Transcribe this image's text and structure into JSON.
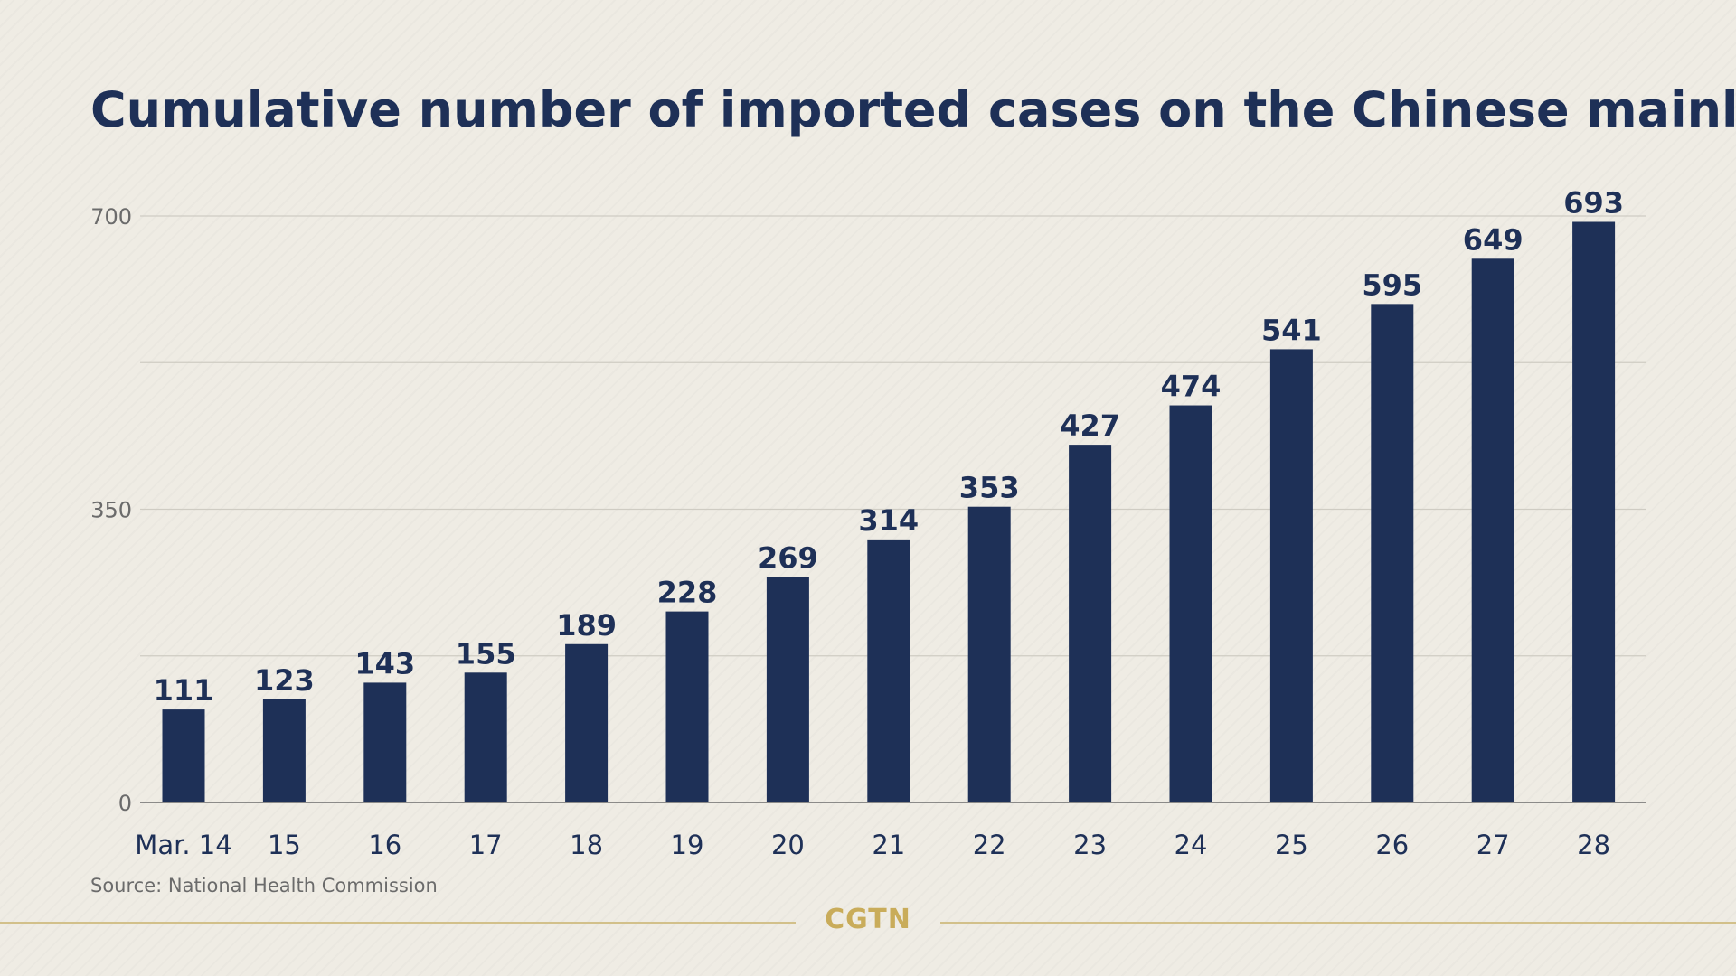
{
  "title": "Cumulative number of imported cases on the Chinese mainland",
  "source": "Source: National Health Commission",
  "brand": "CGTN",
  "colors": {
    "bar": "#1e3057",
    "title": "#1e3057",
    "value_label": "#1e3057",
    "tick_label": "#1e3057",
    "y_tick_label": "#6b6b6b",
    "gridline": "#cfccc3",
    "axis": "#6b6b6b",
    "background": "#efece4",
    "brand": "#c9ac5a"
  },
  "chart_data": {
    "type": "bar",
    "title": "Cumulative number of imported cases on the Chinese mainland",
    "categories": [
      "Mar. 14",
      "15",
      "16",
      "17",
      "18",
      "19",
      "20",
      "21",
      "22",
      "23",
      "24",
      "25",
      "26",
      "27",
      "28"
    ],
    "values": [
      111,
      123,
      143,
      155,
      189,
      228,
      269,
      314,
      353,
      427,
      474,
      541,
      595,
      649,
      693
    ],
    "xlabel": "",
    "ylabel": "",
    "ylim": [
      0,
      700
    ],
    "yticks": [
      0,
      350,
      700
    ],
    "grid": true,
    "legend": "none",
    "data_labels": true
  }
}
